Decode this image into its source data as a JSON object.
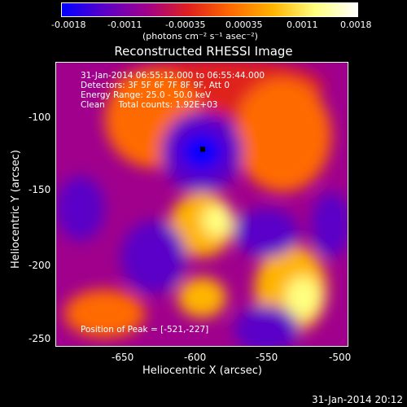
{
  "colorbar": {
    "ticks": [
      "-0.0018",
      "-0.0011",
      "-0.00035",
      "0.00035",
      "0.0011",
      "0.0018"
    ],
    "unit_html": "(photons cm⁻² s⁻¹ asec⁻²)",
    "colors": [
      "#0000ff",
      "#5a00c8",
      "#a0008c",
      "#e0201e",
      "#ff6a00",
      "#ffb400",
      "#ffff80",
      "#ffffff"
    ]
  },
  "plot": {
    "title": "Reconstructed RHESSI Image",
    "info_line1": "31-Jan-2014 06:55:12.000 to 06:55:44.000",
    "info_line2": "Detectors: 3F 5F 6F 7F 8F 9F, Att 0",
    "info_line3": "Energy Range: 25.0 - 50.0 keV",
    "info_line4": "Clean     Total counts: 1.92E+03",
    "peak_text": "Position of Peak = [-521,-227]",
    "x_label": "Heliocentric X (arcsec)",
    "y_label": "Heliocentric Y (arcsec)",
    "x_ticks": [
      "-650",
      "-600",
      "-550",
      "-500"
    ],
    "y_ticks": [
      "-100",
      "-150",
      "-200",
      "-250"
    ]
  },
  "timestamp": "31-Jan-2014 20:12"
}
